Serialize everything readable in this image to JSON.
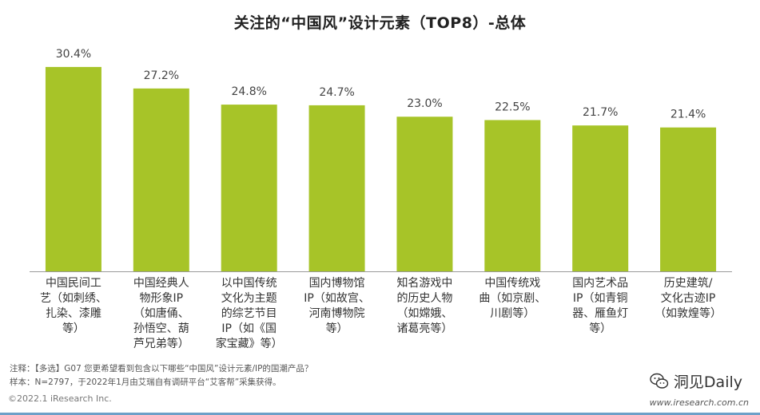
{
  "chart_data": {
    "type": "bar",
    "title": "关注的“中国风”设计元素（TOP8）-总体",
    "categories": [
      "中国民间工\n艺（如刺绣、\n扎染、漆雕\n等）",
      "中国经典人\n物形象IP\n（如唐俑、\n孙悟空、葫\n芦兄弟等）",
      "以中国传统\n文化为主题\n的综艺节目\nIP（如《国\n家宝藏》等）",
      "国内博物馆\nIP（如故宫、\n河南博物院\n等）",
      "知名游戏中\n的历史人物\n（如嫦娥、\n诸葛亮等）",
      "中国传统戏\n曲（如京剧、\n川剧等）",
      "国内艺术品\nIP（如青铜\n器、雁鱼灯\n等）",
      "历史建筑/\n文化古迹IP\n（如敦煌等）"
    ],
    "values": [
      30.4,
      27.2,
      24.8,
      24.7,
      23.0,
      22.5,
      21.7,
      21.4
    ],
    "value_labels": [
      "30.4%",
      "27.2%",
      "24.8%",
      "24.7%",
      "23.0%",
      "22.5%",
      "21.7%",
      "21.4%"
    ],
    "bar_color": "#a7c428",
    "ylim": [
      0,
      33
    ]
  },
  "notes": {
    "note1": "注释：【多选】G07  您更希望看到包含以下哪些“中国风”设计元素/IP的国潮产品？",
    "note2": "样本：N=2797，于2022年1月由艾瑞自有调研平台“艾客帮”采集获得。"
  },
  "footer": {
    "copyright": "©2022.1 iResearch Inc.",
    "url": "www.iresearch.com.cn",
    "brand": "洞见Daily"
  }
}
